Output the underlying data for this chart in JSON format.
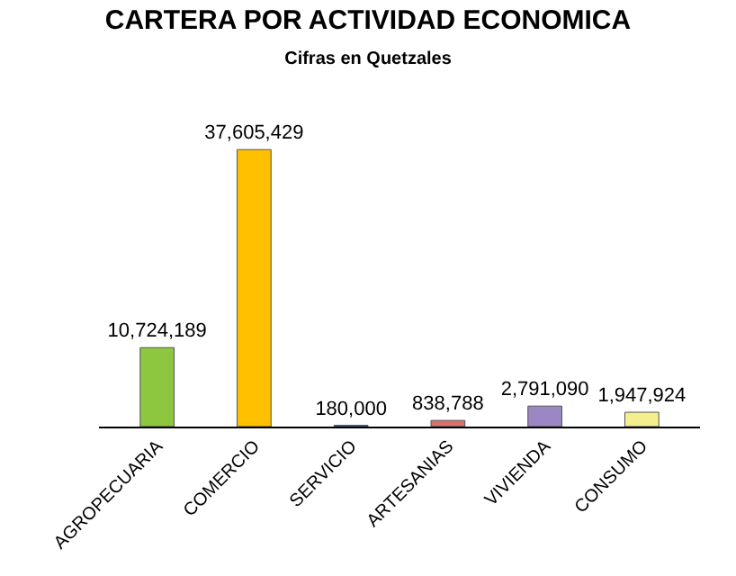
{
  "chart_data": {
    "type": "bar",
    "title": "CARTERA POR ACTIVIDAD ECONOMICA",
    "subtitle": "Cifras en Quetzales",
    "categories": [
      "AGROPECUARIA",
      "COMERCIO",
      "SERVICIO",
      "ARTESANIAS",
      "VIVIENDA",
      "CONSUMO"
    ],
    "values": [
      10724189,
      37605429,
      180000,
      838788,
      2791090,
      1947924
    ],
    "colors": [
      "#8dc63f",
      "#ffc000",
      "#2e5fa8",
      "#d9716b",
      "#9b87c4",
      "#f3ef8c"
    ],
    "value_labels": [
      "10,724,189",
      "37,605,429",
      "180,000",
      "838,788",
      "2,791,090",
      "1,947,924"
    ],
    "tick_labels": "x"
  }
}
